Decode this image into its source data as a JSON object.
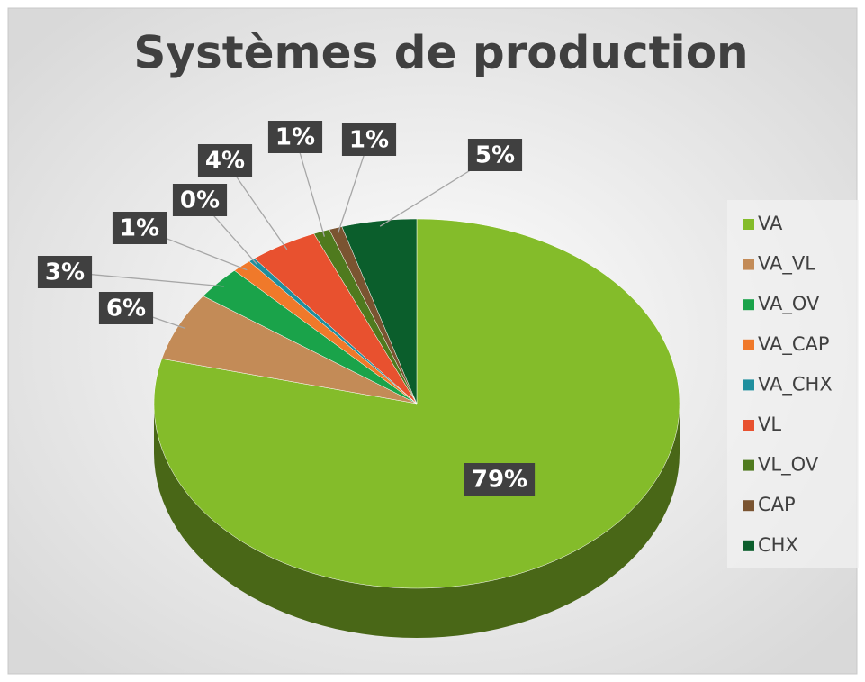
{
  "chart_data": {
    "type": "pie",
    "title": "Systèmes de production",
    "categories": [
      "VA",
      "VA_VL",
      "VA_OV",
      "VA_CAP",
      "VA_CHX",
      "VL",
      "VL_OV",
      "CAP",
      "CHX"
    ],
    "values": [
      78.9,
      6.0,
      2.9,
      1.2,
      0.4,
      4.2,
      1.0,
      0.8,
      4.6
    ],
    "value_labels": [
      "79%",
      "6%",
      "3%",
      "1%",
      "0%",
      "4%",
      "1%",
      "1%",
      "5%"
    ],
    "colors": [
      "#84bc2a",
      "#c38b57",
      "#1aa34a",
      "#f0792a",
      "#1f8f9e",
      "#e8512f",
      "#4f7a1e",
      "#7a5431",
      "#0b5e2c"
    ],
    "legend": "right"
  }
}
